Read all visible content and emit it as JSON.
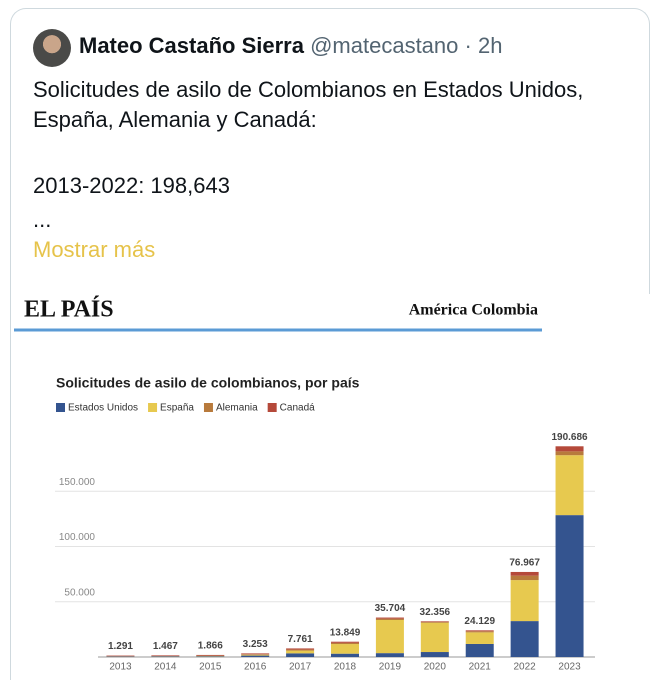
{
  "tweet": {
    "name": "Mateo Castaño Sierra",
    "handle": "@matecastano",
    "time": "2h",
    "text": "Solicitudes de asilo de Colombianos en Estados Unidos, España, Alemania y Canadá:",
    "line2": "2013-2022: 198,643",
    "ellipsis": "...",
    "more": "Mostrar más"
  },
  "image": {
    "brand": "EL PAÍS",
    "section": "América Colombia"
  },
  "chart_data": {
    "type": "stacked_bar",
    "title": "Solicitudes de asilo de colombianos, por país",
    "categories": [
      "2013",
      "2014",
      "2015",
      "2016",
      "2017",
      "2018",
      "2019",
      "2020",
      "2021",
      "2022",
      "2023"
    ],
    "series": [
      {
        "name": "Estados Unidos",
        "color": "#34548f",
        "values": [
          400,
          500,
          600,
          1300,
          3300,
          3000,
          3500,
          4500,
          11800,
          32500,
          128400
        ]
      },
      {
        "name": "España",
        "color": "#e7c94f",
        "values": [
          150,
          200,
          300,
          700,
          2500,
          8700,
          30000,
          26500,
          10500,
          37100,
          54200
        ]
      },
      {
        "name": "Alemania",
        "color": "#b87a3c",
        "values": [
          200,
          200,
          300,
          500,
          900,
          1100,
          1200,
          800,
          1000,
          4000,
          3500
        ]
      },
      {
        "name": "Canadá",
        "color": "#b5493a",
        "values": [
          541,
          567,
          666,
          753,
          1061,
          1049,
          1004,
          556,
          829,
          3367,
          4586
        ]
      }
    ],
    "totals": [
      {
        "value": 1291,
        "label": "1.291"
      },
      {
        "value": 1467,
        "label": "1.467"
      },
      {
        "value": 1866,
        "label": "1.866"
      },
      {
        "value": 3253,
        "label": "3.253"
      },
      {
        "value": 7761,
        "label": "7.761"
      },
      {
        "value": 13849,
        "label": "13.849"
      },
      {
        "value": 35704,
        "label": "35.704"
      },
      {
        "value": 32356,
        "label": "32.356"
      },
      {
        "value": 24129,
        "label": "24.129"
      },
      {
        "value": 76967,
        "label": "76.967"
      },
      {
        "value": 190686,
        "label": "190.686"
      }
    ],
    "ylim": [
      0,
      200000
    ],
    "yticks": [
      {
        "value": 50000,
        "label": "50.000"
      },
      {
        "value": 100000,
        "label": "100.000"
      },
      {
        "value": 150000,
        "label": "150.000"
      }
    ],
    "grid": true
  }
}
